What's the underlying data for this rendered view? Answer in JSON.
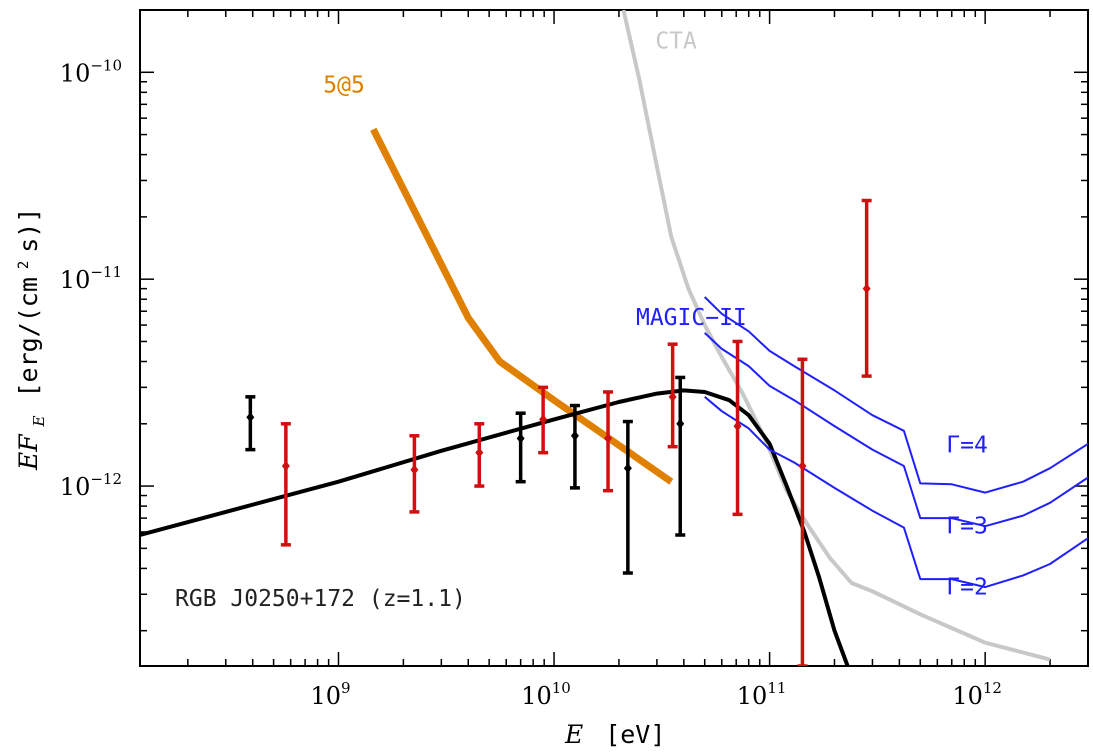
{
  "chart_data": {
    "type": "line",
    "title": "",
    "xlabel": {
      "var": "E",
      "unit": "[eV]"
    },
    "ylabel": {
      "main": "EF",
      "sub": "E",
      "unit": "[erg/(cm",
      "sup": "2",
      "unit_tail": "s)]"
    },
    "xscale": "log",
    "yscale": "log",
    "xlim": [
      120000000.0,
      3000000000000.0
    ],
    "ylim": [
      1.35e-13,
      2e-10
    ],
    "x_ticks": [
      {
        "value": 1000000000.0,
        "base": "10",
        "exp": "9"
      },
      {
        "value": 10000000000.0,
        "base": "10",
        "exp": "10"
      },
      {
        "value": 100000000000.0,
        "base": "10",
        "exp": "11"
      },
      {
        "value": 1000000000000.0,
        "base": "10",
        "exp": "12"
      }
    ],
    "y_ticks": [
      {
        "value": 1e-12,
        "base": "10",
        "exp": "−12"
      },
      {
        "value": 1e-11,
        "base": "10",
        "exp": "−11"
      },
      {
        "value": 1e-10,
        "base": "10",
        "exp": "−10"
      }
    ],
    "source_label": "RGB J0250+172 (z=1.1)",
    "series": [
      {
        "name": "5@5",
        "color": "#e08000",
        "width": 7,
        "points": [
          [
            1450000000.0,
            5.3e-11
          ],
          [
            4000000000.0,
            6.5e-12
          ],
          [
            5600000000.0,
            4e-12
          ],
          [
            10000000000.0,
            2.6e-12
          ],
          [
            35000000000.0,
            1.05e-12
          ]
        ],
        "label": "5@5",
        "label_at": [
          850000000.0,
          8e-11
        ]
      },
      {
        "name": "CTA",
        "color": "#c8c8c8",
        "width": 4,
        "points": [
          [
            21000000000.0,
            2e-10
          ],
          [
            25000000000.0,
            9e-11
          ],
          [
            30000000000.0,
            3.5e-11
          ],
          [
            35000000000.0,
            1.6e-11
          ],
          [
            42000000000.0,
            9e-12
          ],
          [
            50000000000.0,
            6e-12
          ],
          [
            60000000000.0,
            4.2e-12
          ],
          [
            75000000000.0,
            2.8e-12
          ],
          [
            95000000000.0,
            1.7e-12
          ],
          [
            120000000000.0,
            9.5e-13
          ],
          [
            150000000000.0,
            6.5e-13
          ],
          [
            190000000000.0,
            4.5e-13
          ],
          [
            240000000000.0,
            3.4e-13
          ],
          [
            300000000000.0,
            3.1e-13
          ],
          [
            500000000000.0,
            2.4e-13
          ],
          [
            1000000000000.0,
            1.75e-13
          ],
          [
            2000000000000.0,
            1.45e-13
          ]
        ],
        "label": "CTA",
        "label_at": [
          29500000000.0,
          1.3e-10
        ]
      },
      {
        "name": "model",
        "color": "#000000",
        "width": 4,
        "points": [
          [
            120000000.0,
            5.8e-13
          ],
          [
            300000000.0,
            7.5e-13
          ],
          [
            1000000000.0,
            1.05e-12
          ],
          [
            3000000000.0,
            1.48e-12
          ],
          [
            10000000000.0,
            2.1e-12
          ],
          [
            20000000000.0,
            2.55e-12
          ],
          [
            30000000000.0,
            2.8e-12
          ],
          [
            40000000000.0,
            2.9e-12
          ],
          [
            50000000000.0,
            2.85e-12
          ],
          [
            65000000000.0,
            2.6e-12
          ],
          [
            80000000000.0,
            2.2e-12
          ],
          [
            100000000000.0,
            1.6e-12
          ],
          [
            120000000000.0,
            1e-12
          ],
          [
            145000000000.0,
            6e-13
          ],
          [
            170000000000.0,
            3.6e-13
          ],
          [
            200000000000.0,
            2e-13
          ],
          [
            230000000000.0,
            1.35e-13
          ]
        ]
      },
      {
        "name": "MAGIC-II Γ=4",
        "color": "#2020ff",
        "width": 2,
        "points": [
          [
            50000000000.0,
            8.2e-12
          ],
          [
            60000000000.0,
            6.8e-12
          ],
          [
            80000000000.0,
            5.6e-12
          ],
          [
            100000000000.0,
            4.5e-12
          ],
          [
            130000000000.0,
            3.8e-12
          ],
          [
            200000000000.0,
            2.9e-12
          ],
          [
            300000000000.0,
            2.2e-12
          ],
          [
            420000000000.0,
            1.85e-12
          ],
          [
            500000000000.0,
            1.03e-12
          ],
          [
            700000000000.0,
            1.02e-12
          ],
          [
            1000000000000.0,
            9.3e-13
          ],
          [
            1500000000000.0,
            1.05e-12
          ],
          [
            2000000000000.0,
            1.22e-12
          ],
          [
            3000000000000.0,
            1.6e-12
          ]
        ],
        "label": "Γ=4",
        "label_at": [
          660000000000.0,
          1.45e-12
        ]
      },
      {
        "name": "MAGIC-II Γ=3",
        "color": "#2020ff",
        "width": 2,
        "points": [
          [
            50000000000.0,
            5.5e-12
          ],
          [
            60000000000.0,
            4.6e-12
          ],
          [
            80000000000.0,
            3.8e-12
          ],
          [
            100000000000.0,
            3.05e-12
          ],
          [
            130000000000.0,
            2.6e-12
          ],
          [
            200000000000.0,
            1.95e-12
          ],
          [
            300000000000.0,
            1.5e-12
          ],
          [
            420000000000.0,
            1.25e-12
          ],
          [
            500000000000.0,
            7e-13
          ],
          [
            700000000000.0,
            7e-13
          ],
          [
            1000000000000.0,
            6.4e-13
          ],
          [
            1500000000000.0,
            7.2e-13
          ],
          [
            2000000000000.0,
            8.3e-13
          ],
          [
            3000000000000.0,
            1.1e-12
          ]
        ],
        "label": "Γ=3",
        "label_at": [
          660000000000.0,
          5.9e-13
        ]
      },
      {
        "name": "MAGIC-II Γ=2",
        "color": "#2020ff",
        "width": 2,
        "points": [
          [
            50000000000.0,
            2.7e-12
          ],
          [
            60000000000.0,
            2.3e-12
          ],
          [
            80000000000.0,
            1.9e-12
          ],
          [
            100000000000.0,
            1.5e-12
          ],
          [
            130000000000.0,
            1.3e-12
          ],
          [
            200000000000.0,
            9.8e-13
          ],
          [
            300000000000.0,
            7.6e-13
          ],
          [
            420000000000.0,
            6.3e-13
          ],
          [
            500000000000.0,
            3.55e-13
          ],
          [
            700000000000.0,
            3.55e-13
          ],
          [
            1000000000000.0,
            3.25e-13
          ],
          [
            1500000000000.0,
            3.7e-13
          ],
          [
            2000000000000.0,
            4.2e-13
          ],
          [
            3000000000000.0,
            5.6e-13
          ]
        ],
        "label": "Γ=2",
        "label_at": [
          660000000000.0,
          3e-13
        ]
      }
    ],
    "magic_label": {
      "text": "MAGIC−II",
      "at": [
        24000000000.0,
        6e-12
      ],
      "color": "#2020ff"
    },
    "error_bars": [
      {
        "group": "black",
        "color": "#000000",
        "x": 390000000.0,
        "y": 2.15e-12,
        "lo": 1.5e-12,
        "hi": 2.7e-12
      },
      {
        "group": "black",
        "color": "#000000",
        "x": 7000000000.0,
        "y": 1.7e-12,
        "lo": 1.05e-12,
        "hi": 2.25e-12
      },
      {
        "group": "black",
        "color": "#000000",
        "x": 12500000000.0,
        "y": 1.75e-12,
        "lo": 9.8e-13,
        "hi": 2.45e-12
      },
      {
        "group": "black",
        "color": "#000000",
        "x": 22000000000.0,
        "y": 1.22e-12,
        "lo": 3.8e-13,
        "hi": 2.05e-12
      },
      {
        "group": "black",
        "color": "#000000",
        "x": 38500000000.0,
        "y": 2e-12,
        "lo": 5.8e-13,
        "hi": 3.35e-12
      },
      {
        "group": "red",
        "color": "#d01010",
        "x": 570000000.0,
        "y": 1.25e-12,
        "lo": 5.2e-13,
        "hi": 2e-12
      },
      {
        "group": "red",
        "color": "#d01010",
        "x": 2250000000.0,
        "y": 1.2e-12,
        "lo": 7.5e-13,
        "hi": 1.75e-12
      },
      {
        "group": "red",
        "color": "#d01010",
        "x": 4500000000.0,
        "y": 1.45e-12,
        "lo": 1e-12,
        "hi": 2e-12
      },
      {
        "group": "red",
        "color": "#d01010",
        "x": 8900000000.0,
        "y": 2.1e-12,
        "lo": 1.45e-12,
        "hi": 3e-12
      },
      {
        "group": "red",
        "color": "#d01010",
        "x": 17800000000.0,
        "y": 1.7e-12,
        "lo": 9.5e-13,
        "hi": 2.85e-12
      },
      {
        "group": "red",
        "color": "#d01010",
        "x": 35500000000.0,
        "y": 2.7e-12,
        "lo": 1.55e-12,
        "hi": 4.85e-12
      },
      {
        "group": "red",
        "color": "#d01010",
        "x": 71000000000.0,
        "y": 1.95e-12,
        "lo": 7.3e-13,
        "hi": 5e-12
      },
      {
        "group": "red",
        "color": "#d01010",
        "x": 142000000000.0,
        "y": 1.25e-12,
        "lo": 1.35e-13,
        "hi": 4.1e-12
      },
      {
        "group": "red",
        "color": "#d01010",
        "x": 282000000000.0,
        "y": 9e-12,
        "lo": 3.4e-12,
        "hi": 2.4e-11
      }
    ]
  }
}
